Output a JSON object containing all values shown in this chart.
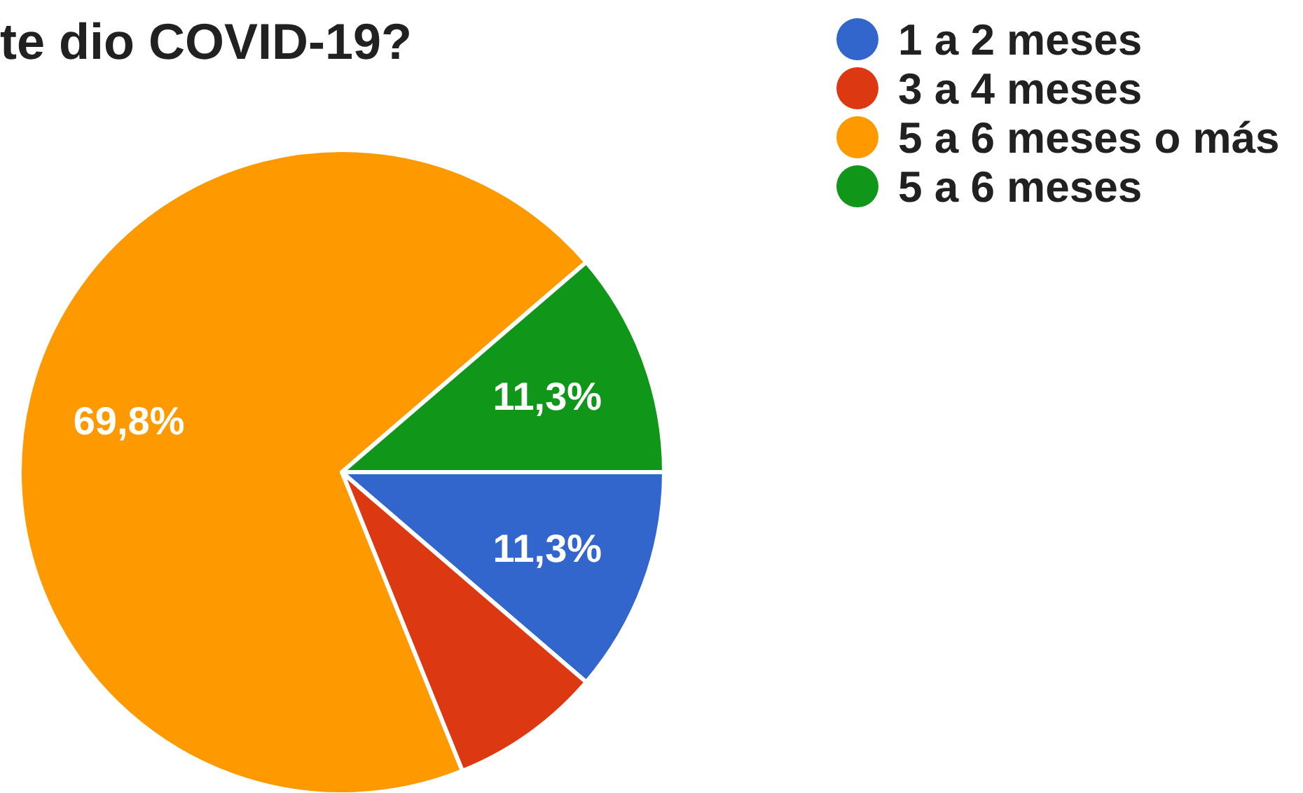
{
  "chart_data": {
    "type": "pie",
    "title": "te dio COVID-19?",
    "categories": [
      "1 a 2 meses",
      "3 a 4 meses",
      "5 a 6 meses o más",
      "5 a 6 meses"
    ],
    "values": [
      11.3,
      7.6,
      69.8,
      11.3
    ],
    "colors": [
      "#3366cc",
      "#dc3912",
      "#ff9900",
      "#109618"
    ],
    "value_labels": [
      "11,3%",
      null,
      "69,8%",
      "11,3%"
    ],
    "legend": "top right"
  }
}
